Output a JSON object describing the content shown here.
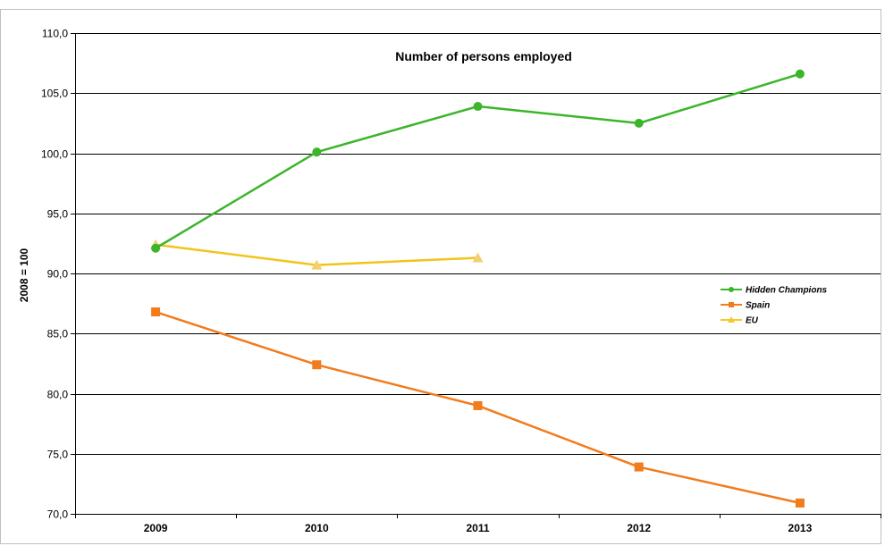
{
  "chart_data": {
    "type": "line",
    "title": "Number of persons employed",
    "ylabel": "2008 = 100",
    "xlabel": "",
    "categories": [
      "2009",
      "2010",
      "2011",
      "2012",
      "2013"
    ],
    "ylim": [
      70,
      110
    ],
    "ytick_labels": [
      "110,0",
      "105,0",
      "100,0",
      "95,0",
      "90,0",
      "85,0",
      "80,0",
      "75,0",
      "70,0"
    ],
    "grid": true,
    "legend_position": "right",
    "series": [
      {
        "name": "Hidden Champions",
        "color": "#3cb52b",
        "marker": "circle",
        "values": [
          92.1,
          100.1,
          103.9,
          102.5,
          106.6
        ]
      },
      {
        "name": "Spain",
        "color": "#f27b1c",
        "marker": "square",
        "values": [
          86.8,
          82.4,
          79.0,
          73.9,
          70.9
        ]
      },
      {
        "name": "EU",
        "color": "#f5c92a",
        "marker": "triangle",
        "values": [
          92.4,
          90.7,
          91.3,
          null,
          null
        ]
      }
    ]
  }
}
